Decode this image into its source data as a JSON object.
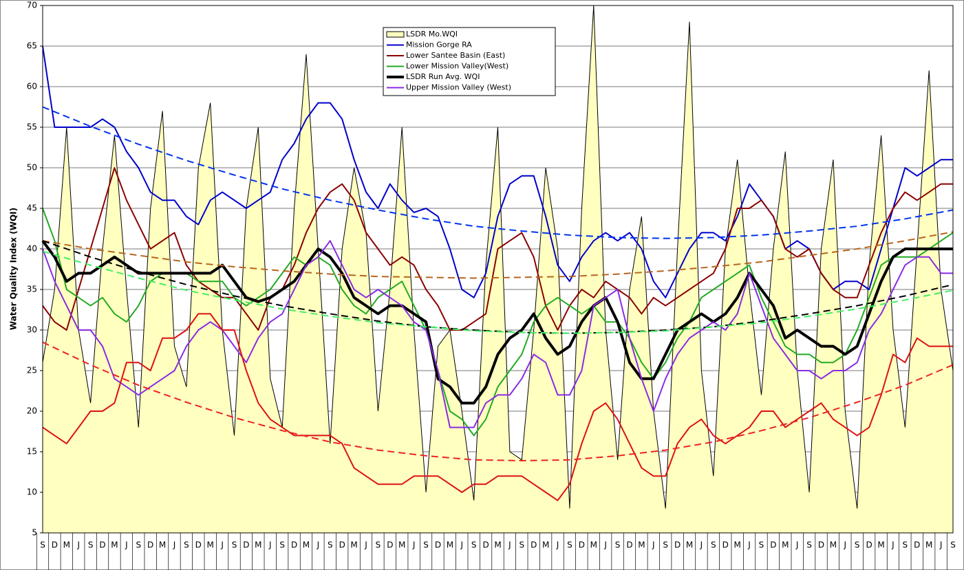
{
  "chart_data": {
    "type": "line",
    "y_label": "Water Quality Index (WQI)",
    "ylim": [
      5,
      70
    ],
    "yticks": [
      5,
      10,
      15,
      20,
      25,
      30,
      35,
      40,
      45,
      50,
      55,
      60,
      65,
      70
    ],
    "grid": true,
    "categories": [
      "S",
      "D",
      "M",
      "J",
      "S",
      "D",
      "M",
      "J",
      "S",
      "D",
      "M",
      "J",
      "S",
      "D",
      "M",
      "J",
      "S",
      "D",
      "M",
      "J",
      "S",
      "D",
      "M",
      "J",
      "S",
      "D",
      "M",
      "J",
      "S",
      "D",
      "M",
      "J",
      "S",
      "D",
      "M",
      "J",
      "S",
      "D",
      "M",
      "J",
      "S",
      "D",
      "M",
      "J",
      "S",
      "D",
      "M",
      "J",
      "S",
      "D",
      "M",
      "J",
      "S",
      "D",
      "M",
      "J",
      "S",
      "D",
      "M",
      "J",
      "S",
      "D",
      "M",
      "J",
      "S",
      "D",
      "M",
      "J",
      "S",
      "D",
      "M",
      "J",
      "S",
      "D",
      "M",
      "J",
      "S"
    ],
    "series": [
      {
        "name": "LSDR Mo.WQI",
        "style": "area",
        "color": "#ffffc0",
        "values": [
          26,
          35,
          55,
          30,
          21,
          40,
          54,
          35,
          18,
          45,
          57,
          28,
          23,
          50,
          58,
          30,
          17,
          45,
          55,
          24,
          18,
          45,
          64,
          40,
          16,
          40,
          50,
          42,
          20,
          35,
          55,
          30,
          10,
          28,
          30,
          20,
          9,
          38,
          55,
          15,
          14,
          30,
          50,
          40,
          8,
          45,
          70,
          30,
          14,
          35,
          44,
          20,
          8,
          40,
          68,
          25,
          12,
          40,
          51,
          35,
          22,
          40,
          52,
          25,
          10,
          40,
          51,
          20,
          8,
          38,
          54,
          30,
          18,
          40,
          62,
          35,
          25
        ]
      },
      {
        "name": "Mission Gorge RA",
        "color": "#0000cc",
        "values": [
          65,
          55,
          55,
          55,
          55,
          56,
          55,
          52,
          50,
          47,
          46,
          46,
          44,
          43,
          46,
          47,
          46,
          45,
          46,
          47,
          51,
          53,
          56,
          58,
          58,
          56,
          51,
          47,
          45,
          48,
          46,
          44.5,
          45,
          44,
          40,
          35,
          34,
          37,
          44,
          48,
          49,
          49,
          44,
          38,
          36,
          39,
          41,
          42,
          41,
          42,
          40,
          36,
          34,
          37,
          40,
          42,
          42,
          41,
          44,
          48,
          46,
          44,
          40,
          41,
          40,
          37,
          35,
          36,
          36,
          35,
          40,
          45,
          50,
          49,
          50,
          51,
          51
        ]
      },
      {
        "name": "Lower Santee Basin (East)",
        "color": "#8b0000",
        "values": [
          33,
          31,
          30,
          35,
          40,
          45,
          50,
          46,
          43,
          40,
          41,
          42,
          38,
          36,
          35,
          34,
          34,
          32,
          30,
          34,
          35,
          38,
          42,
          45,
          47,
          48,
          46,
          42,
          40,
          38,
          39,
          38,
          35,
          33,
          30,
          30,
          31,
          32,
          40,
          41,
          42,
          39,
          33,
          30,
          33,
          35,
          34,
          36,
          35,
          34,
          32,
          34,
          33,
          34,
          35,
          36,
          37,
          40,
          45,
          45,
          46,
          44,
          40,
          39,
          40,
          37,
          35,
          34,
          34,
          38,
          42,
          45,
          47,
          46,
          47,
          48,
          48
        ]
      },
      {
        "name": "Lower Mission Valley(West)",
        "color": "#22aa22",
        "values": [
          45,
          41,
          35,
          34,
          33,
          34,
          32,
          31,
          33,
          36,
          37,
          37,
          37,
          36,
          36,
          36,
          34,
          33,
          34,
          35,
          37,
          39,
          38,
          39,
          38,
          35,
          33,
          32,
          34,
          35,
          36,
          33,
          30,
          25,
          20,
          19,
          17,
          19,
          23,
          25,
          27,
          31,
          33,
          34,
          33,
          32,
          33,
          31,
          31,
          29,
          26,
          24,
          26,
          29,
          31,
          34,
          35,
          36,
          37,
          38,
          34,
          31,
          28,
          27,
          27,
          26,
          26,
          27,
          30,
          34,
          38,
          39,
          39,
          39,
          40,
          41,
          42
        ]
      },
      {
        "name": "LSDR Run Avg. WQI",
        "color": "#000000",
        "bold": true,
        "values": [
          41,
          39,
          36,
          37,
          37,
          38,
          39,
          38,
          37,
          37,
          37,
          37,
          37,
          37,
          37,
          38,
          36,
          34,
          33.5,
          34,
          35,
          36,
          38,
          40,
          39,
          37,
          34,
          33,
          32,
          33,
          33,
          32,
          31,
          24,
          23,
          21,
          21,
          23,
          27,
          29,
          30,
          32,
          29,
          27,
          28,
          31,
          33,
          34,
          31,
          26,
          24,
          24,
          27,
          30,
          31,
          32,
          31,
          32,
          34,
          37,
          35,
          33,
          29,
          30,
          29,
          28,
          28,
          27,
          28,
          32,
          36,
          39,
          40,
          40,
          40,
          40,
          40
        ]
      },
      {
        "name": "Upper Mission Valley (West)",
        "color": "#8a2be2",
        "values": [
          40,
          36,
          33,
          30,
          30,
          28,
          24,
          23,
          22,
          23,
          24,
          25,
          28,
          30,
          31,
          30,
          28,
          26,
          29,
          31,
          32,
          35,
          38,
          39,
          41,
          38,
          35,
          34,
          35,
          34,
          33,
          31,
          30,
          25,
          18,
          18,
          18,
          21,
          22,
          22,
          24,
          27,
          26,
          22,
          22,
          25,
          33,
          34,
          35,
          29,
          24,
          20,
          24,
          27,
          29,
          30,
          31,
          30,
          32,
          37,
          33,
          29,
          27,
          25,
          25,
          24,
          25,
          25,
          26,
          30,
          32,
          35,
          38,
          39,
          39,
          37,
          37
        ]
      },
      {
        "color": "#dd1111",
        "values": [
          18,
          17,
          16,
          18,
          20,
          20,
          21,
          26,
          26,
          25,
          29,
          29,
          30,
          32,
          32,
          30,
          30,
          25,
          21,
          19,
          18,
          17,
          17,
          17,
          17,
          16,
          13,
          12,
          11,
          11,
          11,
          12,
          12,
          12,
          11,
          10,
          11,
          11,
          12,
          12,
          12,
          11,
          10,
          9,
          11,
          16,
          20,
          21,
          19,
          16,
          13,
          12,
          12,
          16,
          18,
          19,
          17,
          16,
          17,
          18,
          20,
          20,
          18,
          19,
          20,
          21,
          19,
          18,
          17,
          18,
          22,
          27,
          26,
          29,
          28,
          28,
          28
        ]
      }
    ],
    "trendlines": [
      {
        "color": "#0033ee",
        "values": [
          57.5,
          55.1,
          52.9,
          50.9,
          49.1,
          47.4,
          46.0,
          44.8,
          43.7,
          42.8,
          42.2,
          41.7,
          41.4,
          41.3,
          41.4,
          41.7,
          42.2,
          42.8,
          43.7,
          44.8
        ]
      },
      {
        "color": "#ee2222",
        "values": [
          28.5,
          25.7,
          23.2,
          21.1,
          19.2,
          17.6,
          16.2,
          15.2,
          14.5,
          14.0,
          13.9,
          14.0,
          14.5,
          15.2,
          16.2,
          17.6,
          19.2,
          21.1,
          23.2,
          25.7
        ]
      },
      {
        "color": "#b5651d",
        "values": [
          41.0,
          40.0,
          39.2,
          38.4,
          37.8,
          37.3,
          36.9,
          36.6,
          36.5,
          36.4,
          36.5,
          36.6,
          36.9,
          37.3,
          37.8,
          38.4,
          39.2,
          40.0,
          41.0,
          42.1
        ]
      },
      {
        "color": "#000000",
        "values": [
          41.0,
          39.0,
          37.2,
          35.6,
          34.2,
          33.0,
          32.0,
          31.1,
          30.4,
          30.0,
          29.7,
          29.6,
          29.7,
          30.0,
          30.4,
          31.1,
          32.0,
          33.0,
          34.2,
          35.6
        ]
      },
      {
        "color": "#44ee66",
        "values": [
          39.7,
          38.0,
          36.4,
          34.9,
          33.7,
          32.6,
          31.7,
          30.9,
          30.4,
          29.9,
          29.7,
          29.6,
          29.7,
          29.9,
          30.4,
          30.9,
          31.7,
          32.6,
          33.7,
          34.9
        ]
      }
    ]
  }
}
